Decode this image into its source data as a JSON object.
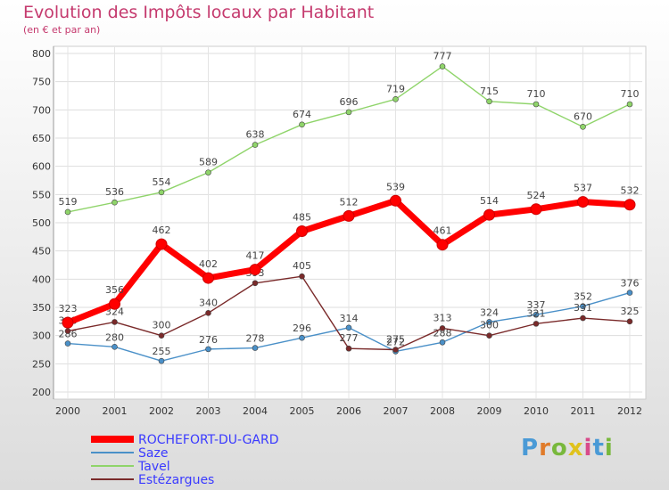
{
  "title": "Evolution des Impôts locaux par Habitant",
  "subtitle": "(en € et par an)",
  "logo": {
    "text": "Proxiti",
    "letters": [
      "P",
      "r",
      "o",
      "x",
      "i",
      "t",
      "i"
    ],
    "colors": [
      "#4a9ad6",
      "#e07b2a",
      "#78b83c",
      "#e0c21c",
      "#d84a8a",
      "#4a9ad6",
      "#78b83c"
    ]
  },
  "chart_data": {
    "type": "line",
    "title": "Evolution des Impôts locaux par Habitant",
    "subtitle": "(en € et par an)",
    "xlabel": "",
    "ylabel": "",
    "x": [
      "2000",
      "2001",
      "2002",
      "2003",
      "2004",
      "2005",
      "2006",
      "2007",
      "2008",
      "2009",
      "2010",
      "2011",
      "2012"
    ],
    "ylim": [
      200,
      800
    ],
    "yticks": [
      "200",
      "250",
      "300",
      "350",
      "400",
      "450",
      "500",
      "550",
      "600",
      "650",
      "700",
      "750",
      "800"
    ],
    "grid": true,
    "legend": "bottom-left",
    "series": [
      {
        "name": "ROCHEFORT-DU-GARD",
        "color": "#ff0000",
        "values": [
          323,
          356,
          462,
          402,
          417,
          485,
          512,
          539,
          461,
          514,
          524,
          537,
          532
        ]
      },
      {
        "name": "Saze",
        "color": "#4a90c8",
        "values": [
          286,
          280,
          255,
          276,
          278,
          296,
          314,
          272,
          288,
          324,
          337,
          352,
          376
        ]
      },
      {
        "name": "Tavel",
        "color": "#8fd46a",
        "values": [
          519,
          536,
          554,
          589,
          638,
          674,
          696,
          719,
          777,
          715,
          710,
          670,
          710
        ]
      },
      {
        "name": "Estézargues",
        "color": "#7a2a2a",
        "values": [
          308,
          324,
          300,
          340,
          393,
          405,
          277,
          275,
          313,
          300,
          321,
          331,
          325
        ]
      }
    ]
  }
}
